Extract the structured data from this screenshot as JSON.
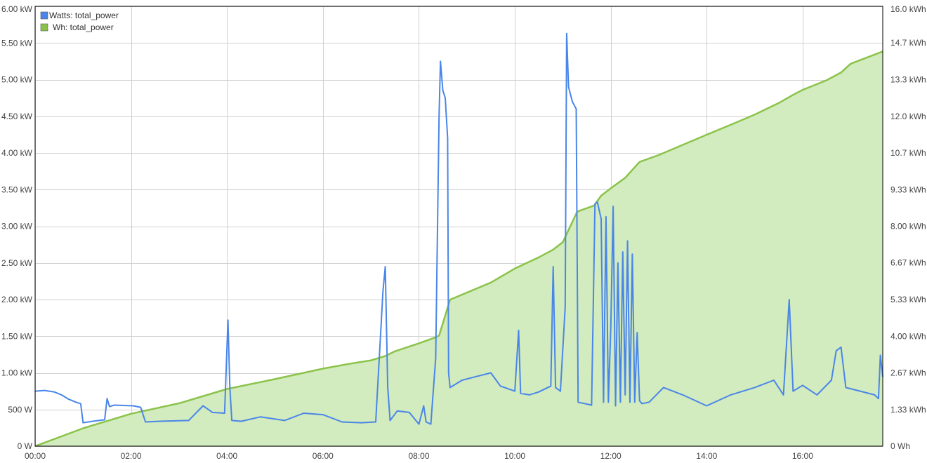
{
  "chart_data": {
    "type": "line",
    "title": "",
    "xlabel": "",
    "ylabel": "",
    "grid": true,
    "legend_placement": "top-left",
    "x_range_hours": [
      0,
      17.67
    ],
    "x_ticks": [
      {
        "hour": 0,
        "label": "00:00"
      },
      {
        "hour": 2,
        "label": "02:00"
      },
      {
        "hour": 4,
        "label": "04:00"
      },
      {
        "hour": 6,
        "label": "06:00"
      },
      {
        "hour": 8,
        "label": "08:00"
      },
      {
        "hour": 10,
        "label": "10:00"
      },
      {
        "hour": 12,
        "label": "12:00"
      },
      {
        "hour": 14,
        "label": "14:00"
      },
      {
        "hour": 16,
        "label": "16:00"
      }
    ],
    "y_left": {
      "unit": "W",
      "range": [
        0,
        6000
      ],
      "ticks": [
        {
          "value": 0,
          "label": "0 W"
        },
        {
          "value": 500,
          "label": "500 W"
        },
        {
          "value": 1000,
          "label": "1.00 kW"
        },
        {
          "value": 1500,
          "label": "1.50 kW"
        },
        {
          "value": 2000,
          "label": "2.00 kW"
        },
        {
          "value": 2500,
          "label": "2.50 kW"
        },
        {
          "value": 3000,
          "label": "3.00 kW"
        },
        {
          "value": 3500,
          "label": "3.50 kW"
        },
        {
          "value": 4000,
          "label": "4.00 kW"
        },
        {
          "value": 4500,
          "label": "4.50 kW"
        },
        {
          "value": 5000,
          "label": "5.00 kW"
        },
        {
          "value": 5500,
          "label": "5.50 kW"
        },
        {
          "value": 6000,
          "label": "6.00 kW"
        }
      ]
    },
    "y_right": {
      "unit": "Wh",
      "range": [
        0,
        16000
      ],
      "ticks": [
        {
          "value": 0,
          "label": "0 Wh"
        },
        {
          "value": 1333,
          "label": "1.33 kWh"
        },
        {
          "value": 2667,
          "label": "2.67 kWh"
        },
        {
          "value": 4000,
          "label": "4.00 kWh"
        },
        {
          "value": 5333,
          "label": "5.33 kWh"
        },
        {
          "value": 6667,
          "label": "6.67 kWh"
        },
        {
          "value": 8000,
          "label": "8.00 kWh"
        },
        {
          "value": 9333,
          "label": "9.33 kWh"
        },
        {
          "value": 10667,
          "label": "10.7 kWh"
        },
        {
          "value": 12000,
          "label": "12.0 kWh"
        },
        {
          "value": 13333,
          "label": "13.3 kWh"
        },
        {
          "value": 14667,
          "label": "14.7 kWh"
        },
        {
          "value": 16000,
          "label": "16.0 kWh"
        }
      ]
    },
    "series": [
      {
        "name": "Watts: total_power",
        "axis": "left",
        "kind": "line",
        "color": "#4a86e8",
        "x": [
          0,
          0.2,
          0.4,
          0.55,
          0.7,
          0.85,
          0.95,
          1.0,
          1.2,
          1.45,
          1.5,
          1.55,
          1.65,
          2.05,
          2.2,
          2.3,
          2.6,
          3.2,
          3.5,
          3.7,
          3.95,
          4.02,
          4.06,
          4.1,
          4.3,
          4.7,
          5.2,
          5.6,
          6.0,
          6.4,
          6.8,
          7.1,
          7.2,
          7.25,
          7.3,
          7.35,
          7.4,
          7.55,
          7.8,
          8.0,
          8.1,
          8.15,
          8.25,
          8.35,
          8.42,
          8.45,
          8.5,
          8.55,
          8.6,
          8.62,
          8.65,
          8.9,
          9.2,
          9.5,
          9.7,
          10.0,
          10.08,
          10.12,
          10.3,
          10.5,
          10.75,
          10.8,
          10.85,
          10.95,
          11.05,
          11.08,
          11.12,
          11.2,
          11.28,
          11.32,
          11.6,
          11.67,
          11.72,
          11.8,
          11.85,
          11.9,
          11.95,
          12.0,
          12.05,
          12.1,
          12.15,
          12.2,
          12.25,
          12.3,
          12.35,
          12.4,
          12.45,
          12.5,
          12.55,
          12.6,
          12.65,
          12.8,
          13.1,
          13.5,
          14.0,
          14.5,
          15.0,
          15.4,
          15.6,
          15.72,
          15.8,
          16.0,
          16.3,
          16.6,
          16.7,
          16.8,
          16.9,
          17.2,
          17.5,
          17.58,
          17.62,
          17.67
        ],
        "values": [
          750,
          760,
          740,
          700,
          640,
          600,
          580,
          320,
          340,
          360,
          650,
          540,
          560,
          550,
          530,
          330,
          340,
          350,
          550,
          460,
          450,
          1720,
          800,
          350,
          340,
          400,
          350,
          450,
          430,
          330,
          320,
          330,
          1500,
          2100,
          2450,
          800,
          350,
          480,
          460,
          300,
          550,
          330,
          300,
          1200,
          4500,
          5250,
          4850,
          4750,
          4200,
          1000,
          800,
          900,
          950,
          1000,
          820,
          750,
          1580,
          720,
          700,
          740,
          820,
          2450,
          800,
          750,
          1900,
          5630,
          4900,
          4700,
          4600,
          600,
          560,
          3300,
          3330,
          3100,
          600,
          3130,
          600,
          1600,
          3270,
          550,
          2500,
          600,
          2650,
          700,
          2800,
          600,
          2620,
          600,
          1550,
          620,
          580,
          600,
          800,
          700,
          550,
          700,
          800,
          900,
          700,
          2000,
          750,
          830,
          700,
          900,
          1300,
          1350,
          800,
          750,
          700,
          650,
          1240,
          950
        ]
      },
      {
        "name": "Wh: total_power",
        "axis": "right",
        "kind": "area",
        "color": "#8bc34a",
        "fill": "#d2ebbf",
        "x": [
          0,
          1.0,
          2.0,
          3.0,
          4.0,
          5.0,
          6.0,
          6.5,
          7.0,
          7.3,
          7.5,
          8.0,
          8.35,
          8.42,
          8.65,
          9.5,
          10.0,
          10.5,
          10.8,
          11.0,
          11.3,
          11.65,
          11.8,
          12.0,
          12.3,
          12.6,
          13.0,
          13.5,
          14.0,
          14.5,
          15.0,
          15.5,
          15.8,
          16.0,
          16.5,
          16.8,
          17.0,
          17.67
        ],
        "values": [
          0,
          650,
          1180,
          1560,
          2080,
          2440,
          2820,
          2980,
          3120,
          3280,
          3450,
          3740,
          3960,
          4020,
          5330,
          5950,
          6460,
          6870,
          7150,
          7420,
          8530,
          8750,
          9110,
          9380,
          9760,
          10340,
          10590,
          10960,
          11330,
          11690,
          12060,
          12480,
          12780,
          12960,
          13310,
          13590,
          13910,
          14360
        ]
      }
    ]
  }
}
